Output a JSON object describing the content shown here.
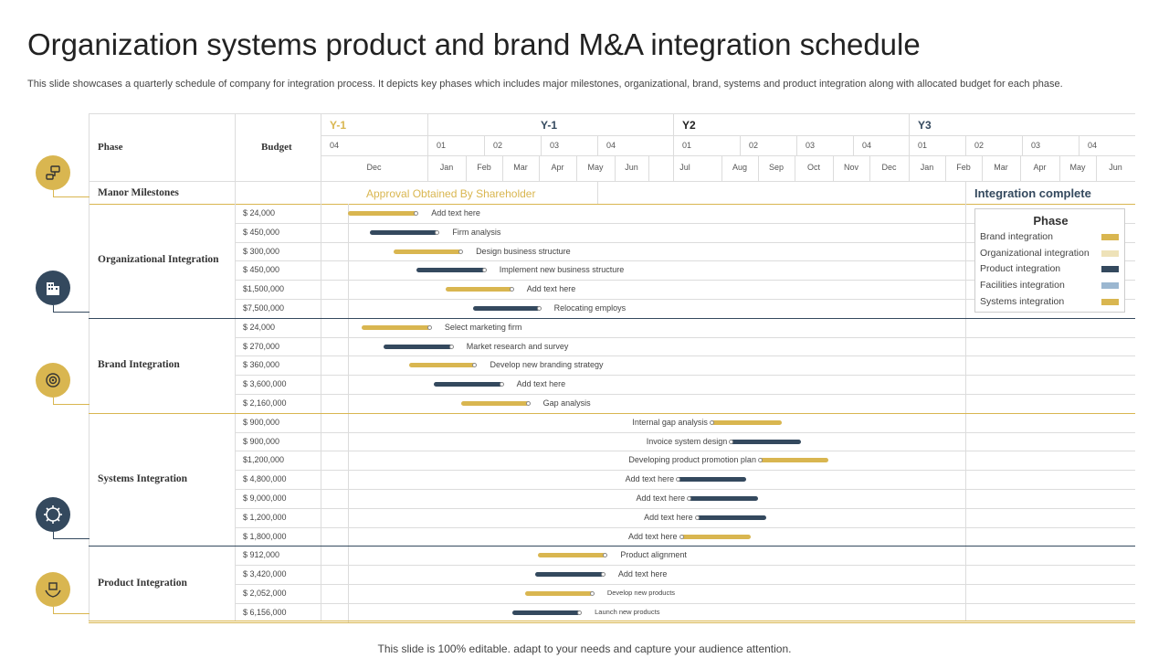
{
  "title": "Organization systems product and brand M&A integration schedule",
  "subtitle": "This slide showcases a quarterly schedule of company for integration process. It depicts key phases which includes major milestones, organizational, brand, systems and product integration along with allocated budget for each phase.",
  "footer": "This slide is 100% editable. adapt to your needs and capture your audience attention.",
  "colors": {
    "gold": "#D9B650",
    "navy": "#34495E",
    "cream": "#EEE2B8",
    "lightblue": "#9BB7D0",
    "line": "#dcdcdc"
  },
  "header": {
    "phase": "Phase",
    "budget": "Budget",
    "years": [
      "Y-1",
      "Y-1",
      "Y2",
      "Y3"
    ],
    "quarters": [
      "04",
      "01",
      "02",
      "03",
      "04",
      "01",
      "02",
      "03",
      "04",
      "01",
      "02",
      "03",
      "04"
    ],
    "months": [
      "Dec",
      "Jan",
      "Feb",
      "Mar",
      "Apr",
      "May",
      "Jun",
      "Jul",
      "Aug",
      "Sep",
      "Oct",
      "Nov",
      "Dec",
      "Jan",
      "Feb",
      "Mar",
      "Apr",
      "May",
      "Jun"
    ]
  },
  "milestones": {
    "label": "Manor Milestones",
    "approval": "Approval Obtained By Shareholder",
    "complete": "Integration complete"
  },
  "legend": {
    "title": "Phase",
    "items": [
      {
        "label": "Brand integration",
        "color": "#D9B650"
      },
      {
        "label": "Organizational integration",
        "color": "#EEE2B8"
      },
      {
        "label": "Product integration",
        "color": "#34495E"
      },
      {
        "label": "Facilities integration",
        "color": "#9BB7D0"
      },
      {
        "label": "Systems integration",
        "color": "#D9B650"
      }
    ]
  },
  "groups": [
    {
      "name": "Organizational Integration",
      "icon": "flowchart-icon",
      "rows": [
        {
          "budget": "$ 24,000",
          "label": "Add text here",
          "color": "gold",
          "start": 0.0,
          "end": 0.88
        },
        {
          "budget": "$ 450,000",
          "label": "Firm analysis",
          "color": "navy",
          "start": 0.28,
          "end": 1.15
        },
        {
          "budget": "$ 300,000",
          "label": "Design business structure",
          "color": "gold",
          "start": 0.58,
          "end": 1.45
        },
        {
          "budget": "$ 450,000",
          "label": "Implement new business structure",
          "color": "navy",
          "start": 0.88,
          "end": 1.75
        },
        {
          "budget": "$1,500,000",
          "label": "Add text here",
          "color": "gold",
          "start": 1.25,
          "end": 2.1
        },
        {
          "budget": "$7,500,000",
          "label": "Relocating employs",
          "color": "navy",
          "start": 1.6,
          "end": 2.45
        }
      ]
    },
    {
      "name": "Brand Integration",
      "icon": "building-icon",
      "rows": [
        {
          "budget": "$ 24,000",
          "label": "Select marketing firm",
          "color": "gold",
          "start": 0.18,
          "end": 1.05
        },
        {
          "budget": "$ 270,000",
          "label": "Market research and survey",
          "color": "navy",
          "start": 0.46,
          "end": 1.33
        },
        {
          "budget": "$ 360,000",
          "label": "Develop new branding strategy",
          "color": "gold",
          "start": 0.78,
          "end": 1.63
        },
        {
          "budget": "$ 3,600,000",
          "label": "Add text here",
          "color": "navy",
          "start": 1.1,
          "end": 1.97
        },
        {
          "budget": "$ 2,160,000",
          "label": "Gap analysis",
          "color": "gold",
          "start": 1.45,
          "end": 2.31
        }
      ]
    },
    {
      "name": "Systems Integration",
      "icon": "gear-icon",
      "rows": [
        {
          "budget": "$ 900,000",
          "label": "Internal gap analysis",
          "color": "gold",
          "start": 4.65,
          "end": 5.55,
          "dot": "start",
          "labelSide": "left"
        },
        {
          "budget": "$ 900,000",
          "label": "Invoice system design",
          "color": "navy",
          "start": 4.9,
          "end": 5.8,
          "dot": "start",
          "labelSide": "left"
        },
        {
          "budget": "$1,200,000",
          "label": "Developing product promotion plan",
          "color": "gold",
          "start": 5.27,
          "end": 6.15,
          "dot": "start",
          "labelSide": "left"
        },
        {
          "budget": "$ 4,800,000",
          "label": "Add text here",
          "color": "navy",
          "start": 4.22,
          "end": 5.1,
          "dot": "start",
          "labelSide": "left"
        },
        {
          "budget": "$ 9,000,000",
          "label": "Add text here",
          "color": "navy",
          "start": 4.36,
          "end": 5.25,
          "dot": "start",
          "labelSide": "left"
        },
        {
          "budget": "$ 1,200,000",
          "label": "Add text here",
          "color": "navy",
          "start": 4.46,
          "end": 5.35,
          "dot": "start",
          "labelSide": "left"
        },
        {
          "budget": "$ 1,800,000",
          "label": "Add text here",
          "color": "gold",
          "start": 4.26,
          "end": 5.15,
          "dot": "start",
          "labelSide": "left"
        }
      ]
    },
    {
      "name": "Product Integration",
      "icon": "hands-box-icon",
      "rows": [
        {
          "budget": "$ 912,000",
          "label": "Product alignment",
          "color": "gold",
          "start": 2.43,
          "end": 3.3
        },
        {
          "budget": "$ 3,420,000",
          "label": "Add text here",
          "color": "navy",
          "start": 2.4,
          "end": 3.27
        },
        {
          "budget": "$ 2,052,000",
          "label": "Develop new products",
          "color": "gold",
          "start": 2.27,
          "end": 3.13,
          "small": true
        },
        {
          "budget": "$ 6,156,000",
          "label": "Launch new products",
          "color": "navy",
          "start": 2.1,
          "end": 2.97,
          "small": true
        }
      ]
    }
  ]
}
